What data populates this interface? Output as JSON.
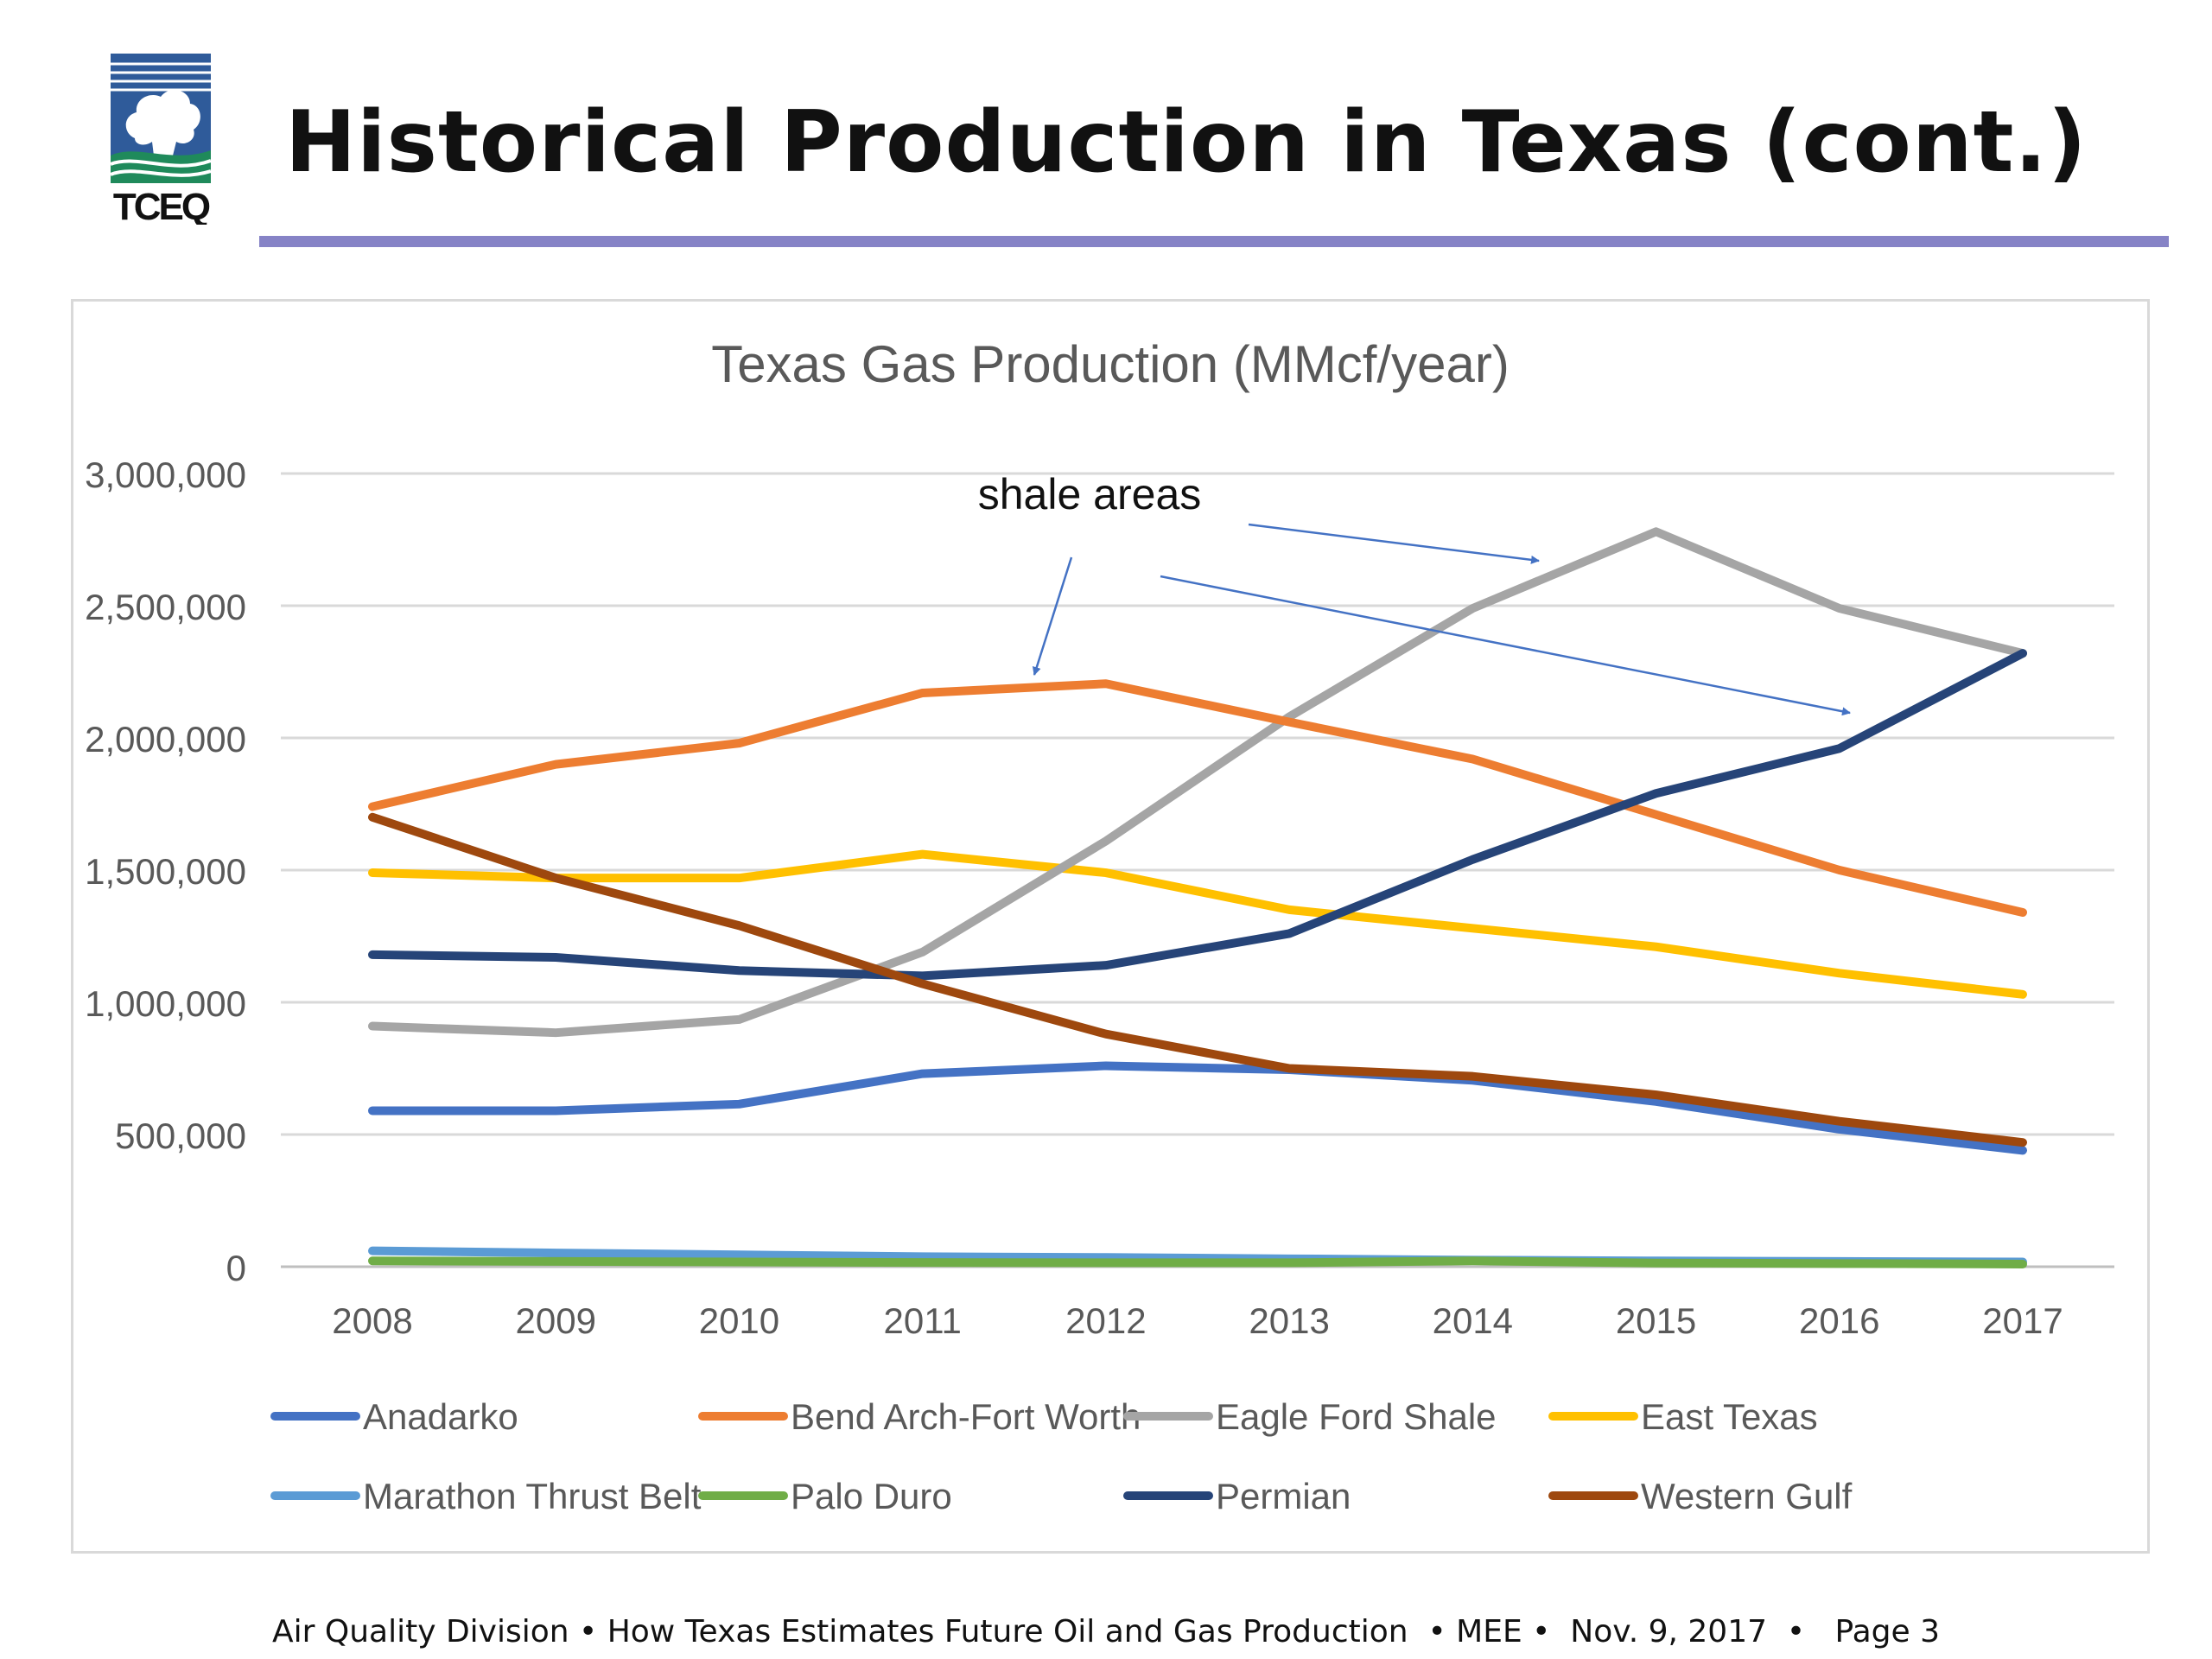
{
  "header": {
    "title": "Historical Production in Texas (cont.)",
    "logo_text": "TCEQ",
    "rule_color": "#8683c6"
  },
  "footer": {
    "text": "Air Quality Division • How Texas Estimates Future Oil and Gas Production  • MEE •  Nov. 9, 2017  •   Page 3"
  },
  "chart_data": {
    "type": "line",
    "title": "Texas Gas Production (MMcf/year)",
    "xlabel": "",
    "ylabel": "",
    "x": [
      "2008",
      "2009",
      "2010",
      "2011",
      "2012",
      "2013",
      "2014",
      "2015",
      "2016",
      "2017"
    ],
    "ylim": [
      0,
      3000000
    ],
    "yticks": [
      0,
      500000,
      1000000,
      1500000,
      2000000,
      2500000,
      3000000
    ],
    "ytick_labels": [
      "0",
      "500,000",
      "1,000,000",
      "1,500,000",
      "2,000,000",
      "2,500,000",
      "3,000,000"
    ],
    "grid": "horizontal",
    "legend_position": "bottom",
    "annotation": "shale areas",
    "series": [
      {
        "name": "Anadarko",
        "color": "#4472c4",
        "values": [
          590000,
          590000,
          615000,
          730000,
          760000,
          745000,
          705000,
          625000,
          520000,
          440000
        ]
      },
      {
        "name": "Bend Arch-Fort Worth",
        "color": "#ed7d31",
        "values": [
          1740000,
          1900000,
          1980000,
          2170000,
          2205000,
          2060000,
          1920000,
          1710000,
          1500000,
          1340000
        ]
      },
      {
        "name": "Eagle Ford Shale",
        "color": "#a5a5a5",
        "values": [
          910000,
          885000,
          935000,
          1190000,
          1610000,
          2080000,
          2490000,
          2780000,
          2490000,
          2320000
        ]
      },
      {
        "name": "East Texas",
        "color": "#ffc000",
        "values": [
          1490000,
          1470000,
          1470000,
          1560000,
          1490000,
          1350000,
          1280000,
          1210000,
          1110000,
          1030000
        ]
      },
      {
        "name": "Marathon Thrust Belt",
        "color": "#5b9bd5",
        "values": [
          60000,
          52000,
          45000,
          38000,
          35000,
          30000,
          25000,
          22000,
          20000,
          18000
        ]
      },
      {
        "name": "Palo Duro",
        "color": "#70ad47",
        "values": [
          22000,
          20000,
          18000,
          16000,
          15000,
          15000,
          22000,
          14000,
          12000,
          10000
        ]
      },
      {
        "name": "Permian",
        "color": "#264478",
        "values": [
          1180000,
          1170000,
          1120000,
          1100000,
          1140000,
          1260000,
          1540000,
          1790000,
          1960000,
          2320000
        ]
      },
      {
        "name": "Western Gulf",
        "color": "#9e480e",
        "values": [
          1700000,
          1470000,
          1290000,
          1070000,
          880000,
          750000,
          720000,
          650000,
          550000,
          470000
        ]
      }
    ]
  }
}
